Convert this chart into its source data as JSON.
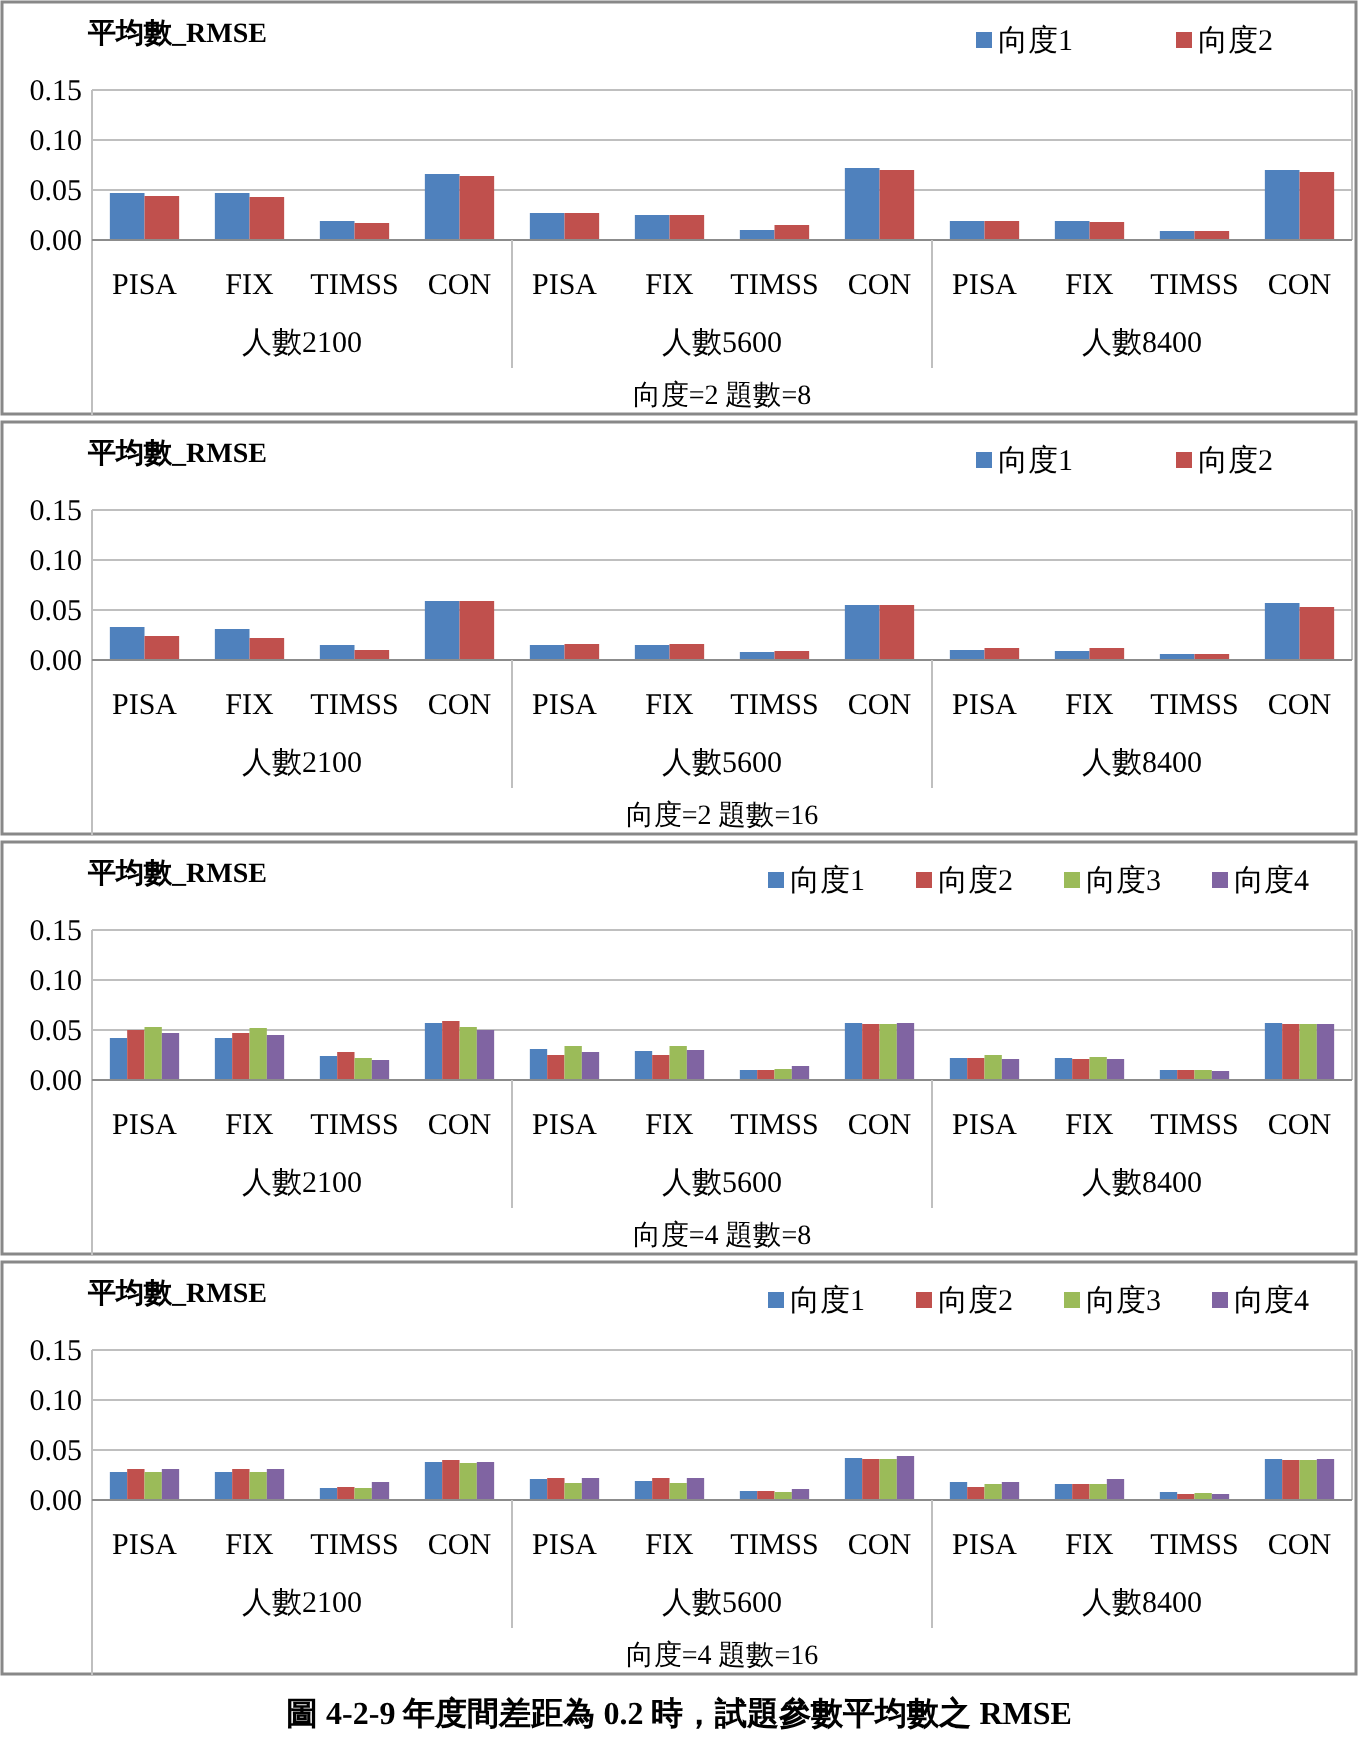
{
  "chart_data": [
    {
      "type": "bar",
      "title": "平均數_RMSE",
      "xlabel": "向度=2 題數=8",
      "categories": [
        "PISA",
        "FIX",
        "TIMSS",
        "CON",
        "PISA",
        "FIX",
        "TIMSS",
        "CON",
        "PISA",
        "FIX",
        "TIMSS",
        "CON"
      ],
      "annotations": [
        "人數2100",
        "人數5600",
        "人數8400"
      ],
      "ylim": [
        0,
        0.15
      ],
      "yticks": [
        {
          "value": 0,
          "label": "0.00"
        },
        {
          "value": 0.05,
          "label": "0.05"
        },
        {
          "value": 0.1,
          "label": "0.10"
        },
        {
          "value": 0.15,
          "label": "0.15"
        }
      ],
      "grid": "y",
      "legend": "top right",
      "series": [
        {
          "name": "向度1",
          "color": "#4f81bd",
          "values": [
            0.047,
            0.047,
            0.019,
            0.066,
            0.027,
            0.025,
            0.01,
            0.072,
            0.019,
            0.019,
            0.009,
            0.07
          ]
        },
        {
          "name": "向度2",
          "color": "#c0504d",
          "values": [
            0.044,
            0.043,
            0.017,
            0.064,
            0.027,
            0.025,
            0.015,
            0.07,
            0.019,
            0.018,
            0.009,
            0.068
          ]
        }
      ]
    },
    {
      "type": "bar",
      "title": "平均數_RMSE",
      "xlabel": "向度=2 題數=16",
      "categories": [
        "PISA",
        "FIX",
        "TIMSS",
        "CON",
        "PISA",
        "FIX",
        "TIMSS",
        "CON",
        "PISA",
        "FIX",
        "TIMSS",
        "CON"
      ],
      "annotations": [
        "人數2100",
        "人數5600",
        "人數8400"
      ],
      "ylim": [
        0,
        0.15
      ],
      "yticks": [
        {
          "value": 0,
          "label": "0.00"
        },
        {
          "value": 0.05,
          "label": "0.05"
        },
        {
          "value": 0.1,
          "label": "0.10"
        },
        {
          "value": 0.15,
          "label": "0.15"
        }
      ],
      "grid": "y",
      "legend": "top right",
      "series": [
        {
          "name": "向度1",
          "color": "#4f81bd",
          "values": [
            0.033,
            0.031,
            0.015,
            0.059,
            0.015,
            0.015,
            0.008,
            0.055,
            0.01,
            0.009,
            0.006,
            0.057
          ]
        },
        {
          "name": "向度2",
          "color": "#c0504d",
          "values": [
            0.024,
            0.022,
            0.01,
            0.059,
            0.016,
            0.016,
            0.009,
            0.055,
            0.012,
            0.012,
            0.006,
            0.053
          ]
        }
      ]
    },
    {
      "type": "bar",
      "title": "平均數_RMSE",
      "xlabel": "向度=4 題數=8",
      "categories": [
        "PISA",
        "FIX",
        "TIMSS",
        "CON",
        "PISA",
        "FIX",
        "TIMSS",
        "CON",
        "PISA",
        "FIX",
        "TIMSS",
        "CON"
      ],
      "annotations": [
        "人數2100",
        "人數5600",
        "人數8400"
      ],
      "ylim": [
        0,
        0.15
      ],
      "yticks": [
        {
          "value": 0,
          "label": "0.00"
        },
        {
          "value": 0.05,
          "label": "0.05"
        },
        {
          "value": 0.1,
          "label": "0.10"
        },
        {
          "value": 0.15,
          "label": "0.15"
        }
      ],
      "grid": "y",
      "legend": "top right",
      "series": [
        {
          "name": "向度1",
          "color": "#4f81bd",
          "values": [
            0.042,
            0.042,
            0.024,
            0.057,
            0.031,
            0.029,
            0.01,
            0.057,
            0.022,
            0.022,
            0.01,
            0.057
          ]
        },
        {
          "name": "向度2",
          "color": "#c0504d",
          "values": [
            0.05,
            0.047,
            0.028,
            0.059,
            0.025,
            0.025,
            0.01,
            0.056,
            0.022,
            0.021,
            0.01,
            0.056
          ]
        },
        {
          "name": "向度3",
          "color": "#9bbb59",
          "values": [
            0.053,
            0.052,
            0.022,
            0.053,
            0.034,
            0.034,
            0.011,
            0.056,
            0.025,
            0.023,
            0.01,
            0.056
          ]
        },
        {
          "name": "向度4",
          "color": "#8064a2",
          "values": [
            0.047,
            0.045,
            0.02,
            0.05,
            0.028,
            0.03,
            0.014,
            0.057,
            0.021,
            0.021,
            0.009,
            0.056
          ]
        }
      ]
    },
    {
      "type": "bar",
      "title": "平均數_RMSE",
      "xlabel": "向度=4 題數=16",
      "categories": [
        "PISA",
        "FIX",
        "TIMSS",
        "CON",
        "PISA",
        "FIX",
        "TIMSS",
        "CON",
        "PISA",
        "FIX",
        "TIMSS",
        "CON"
      ],
      "annotations": [
        "人數2100",
        "人數5600",
        "人數8400"
      ],
      "ylim": [
        0,
        0.15
      ],
      "yticks": [
        {
          "value": 0,
          "label": "0.00"
        },
        {
          "value": 0.05,
          "label": "0.05"
        },
        {
          "value": 0.1,
          "label": "0.10"
        },
        {
          "value": 0.15,
          "label": "0.15"
        }
      ],
      "grid": "y",
      "legend": "top right",
      "series": [
        {
          "name": "向度1",
          "color": "#4f81bd",
          "values": [
            0.028,
            0.028,
            0.012,
            0.038,
            0.021,
            0.019,
            0.009,
            0.042,
            0.018,
            0.016,
            0.008,
            0.041
          ]
        },
        {
          "name": "向度2",
          "color": "#c0504d",
          "values": [
            0.031,
            0.031,
            0.013,
            0.04,
            0.022,
            0.022,
            0.009,
            0.041,
            0.013,
            0.016,
            0.006,
            0.04
          ]
        },
        {
          "name": "向度3",
          "color": "#9bbb59",
          "values": [
            0.028,
            0.028,
            0.012,
            0.037,
            0.017,
            0.017,
            0.008,
            0.041,
            0.016,
            0.016,
            0.007,
            0.04
          ]
        },
        {
          "name": "向度4",
          "color": "#8064a2",
          "values": [
            0.031,
            0.031,
            0.018,
            0.038,
            0.022,
            0.022,
            0.011,
            0.044,
            0.018,
            0.021,
            0.006,
            0.041
          ]
        }
      ]
    },
    {
      "type": "other",
      "title": "圖 4-2-9 年度間差距為 0.2 時，試題參數平均數之 RMSE"
    }
  ]
}
